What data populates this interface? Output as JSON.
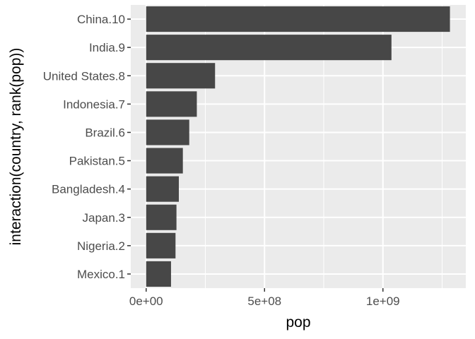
{
  "chart_data": {
    "type": "bar",
    "orientation": "horizontal",
    "categories": [
      "China.10",
      "India.9",
      "United States.8",
      "Indonesia.7",
      "Brazil.6",
      "Pakistan.5",
      "Bangladesh.4",
      "Japan.3",
      "Nigeria.2",
      "Mexico.1"
    ],
    "values": [
      1283000000,
      1036000000,
      291000000,
      214000000,
      182000000,
      155000000,
      138000000,
      128000000,
      124000000,
      105000000
    ],
    "xlabel": "pop",
    "ylabel": "interaction(country, rank(pop))",
    "xlim": [
      -65000000,
      1350000000
    ],
    "x_ticks": [
      {
        "value": 0,
        "label": "0e+00"
      },
      {
        "value": 500000000,
        "label": "5e+08"
      },
      {
        "value": 1000000000,
        "label": "1e+09"
      }
    ],
    "x_minor_ticks": [
      250000000,
      750000000,
      1250000000
    ],
    "grid": true,
    "colors": {
      "panel": "#ebebeb",
      "grid": "#ffffff",
      "bar": "#474747",
      "tick": "#333333",
      "tick_label": "#4d4d4d",
      "title": "#000000"
    }
  }
}
